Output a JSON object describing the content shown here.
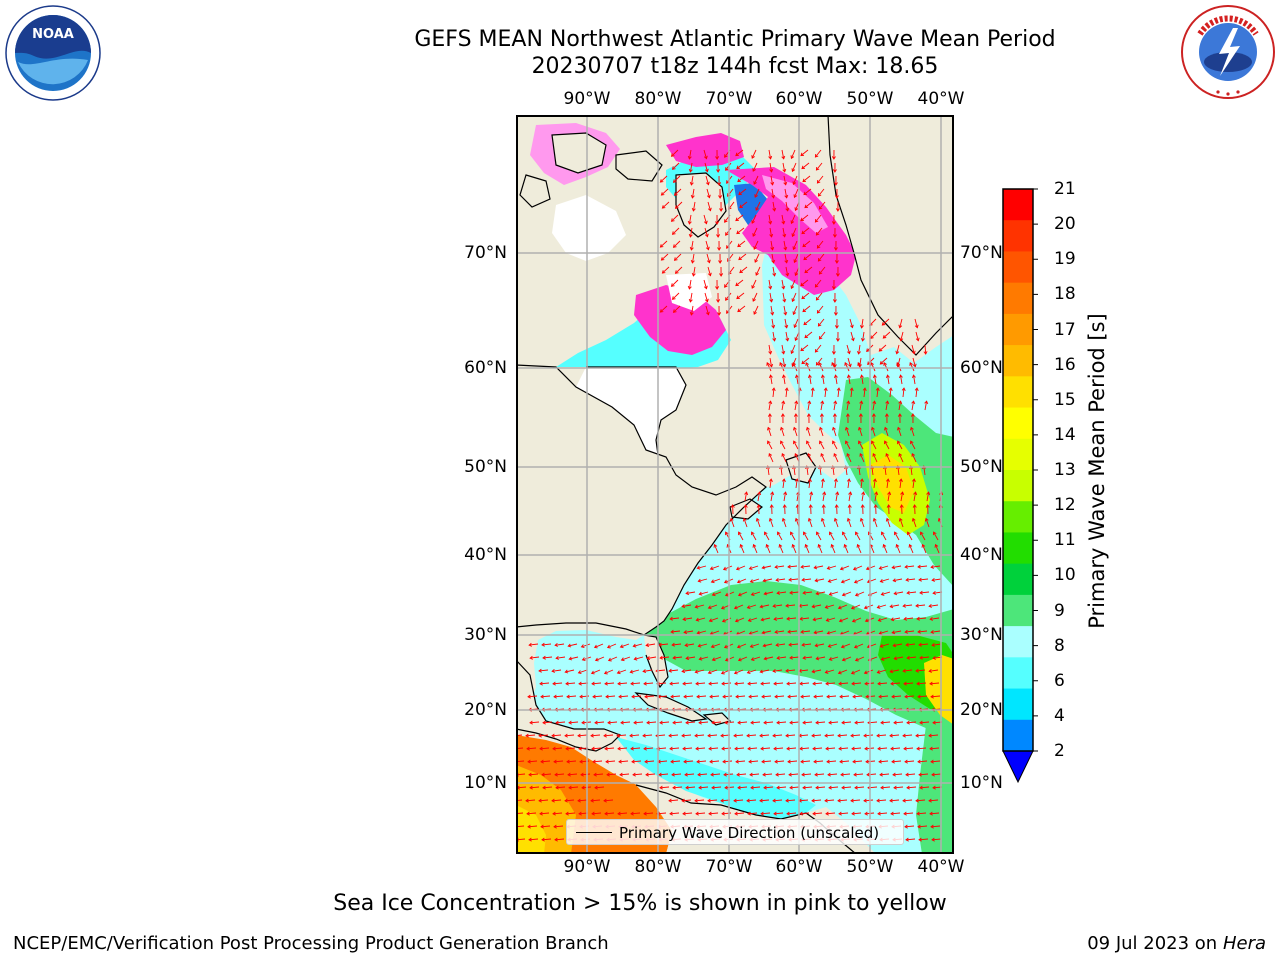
{
  "title": {
    "line1": "GEFS MEAN Northwest Atlantic Primary Wave Mean Period",
    "line2": "20230707 t18z 144h fcst   Max: 18.65"
  },
  "axes": {
    "longitude_labels": [
      "90°W",
      "80°W",
      "70°W",
      "60°W",
      "50°W",
      "40°W"
    ],
    "latitude_labels": [
      "70°N",
      "60°N",
      "50°N",
      "40°N",
      "30°N",
      "20°N",
      "10°N"
    ]
  },
  "legend": {
    "label": "Primary Wave Direction (unscaled)"
  },
  "colorbar": {
    "title": "Primary Wave Mean Period [s]",
    "ticks": [
      "21",
      "20",
      "19",
      "18",
      "17",
      "16",
      "15",
      "14",
      "13",
      "12",
      "11",
      "10",
      "9",
      "8",
      "6",
      "4",
      "2"
    ],
    "colors": [
      "#ff0000",
      "#ff3300",
      "#ff5500",
      "#ff7a00",
      "#ff9a00",
      "#ffbb00",
      "#ffe000",
      "#ffff00",
      "#e6ff00",
      "#c8ff00",
      "#66ee00",
      "#22dd00",
      "#00d13b",
      "#4de67a",
      "#aaffff",
      "#55ffff",
      "#00e6ff",
      "#0088ff"
    ],
    "extend_color": "#0000ff"
  },
  "note": "Sea Ice Concentration > 15% is shown in pink to yellow",
  "footer": {
    "left": "NCEP/EMC/Verification Post Processing Product Generation Branch",
    "right_date": "09 Jul 2023 on ",
    "right_machine": "Hera"
  },
  "logos": {
    "left": "NOAA",
    "right": "NATIONAL WEATHER SERVICE"
  },
  "colors": {
    "land": "#efecdb",
    "arrow": "#ff0000",
    "ice_pink": "#ff33cc",
    "ocean_cyan": "#aaffff"
  }
}
